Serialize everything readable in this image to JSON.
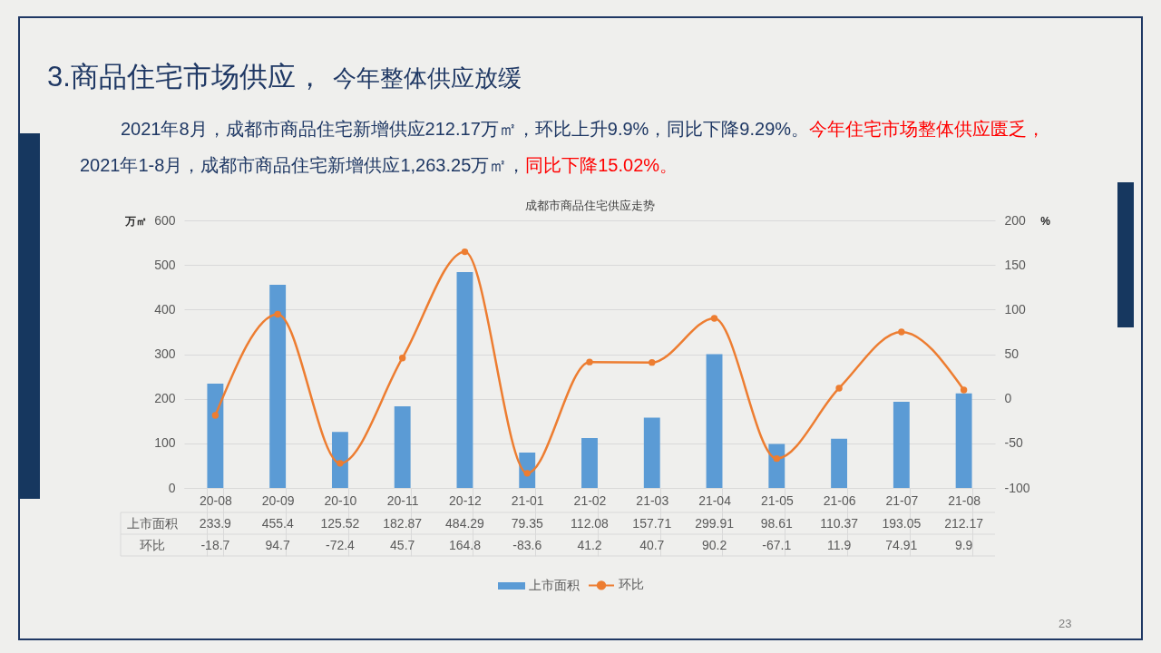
{
  "chart_data": {
    "type": "bar",
    "title": "成都市商品住宅供应走势",
    "ylabel": "万㎡",
    "y2label": "%",
    "categories": [
      "20-08",
      "20-09",
      "20-10",
      "20-11",
      "20-12",
      "21-01",
      "21-02",
      "21-03",
      "21-04",
      "21-05",
      "21-06",
      "21-07",
      "21-08"
    ],
    "series": [
      {
        "name": "上市面积",
        "color": "#5b9bd5",
        "values": [
          233.9,
          455.4,
          125.52,
          182.87,
          484.29,
          79.35,
          112.08,
          157.71,
          299.91,
          98.61,
          110.37,
          193.05,
          212.17
        ]
      },
      {
        "name": "环比",
        "type": "line",
        "axis": "y2",
        "color": "#ed7d31",
        "values": [
          -18.7,
          94.7,
          -72.4,
          45.7,
          164.8,
          -83.6,
          41.2,
          40.7,
          90.2,
          -67.1,
          11.9,
          74.91,
          9.9
        ]
      }
    ],
    "ylim": [
      0,
      600
    ],
    "yticks": [
      0,
      100,
      200,
      300,
      400,
      500,
      600
    ],
    "y2lim": [
      -100,
      200
    ],
    "y2ticks": [
      -100,
      -50,
      0,
      50,
      100,
      150,
      200
    ],
    "grid": "y",
    "legend": "bottom",
    "marker": "circle",
    "line_style": "solid",
    "data_labels": true,
    "annotations": [
      "3.商品住宅市场供应，",
      "今年整体供应放缓",
      "2021年8月，成都市商品住宅新增供应212.17万㎡，环比上升9.9%，同比下降9.29%。",
      "今年住宅市场整体供应匮乏，",
      "2021年1-8月，成都市商品住宅新增供应1,263.25万㎡，",
      "同比下降15.02%。",
      "23"
    ]
  }
}
